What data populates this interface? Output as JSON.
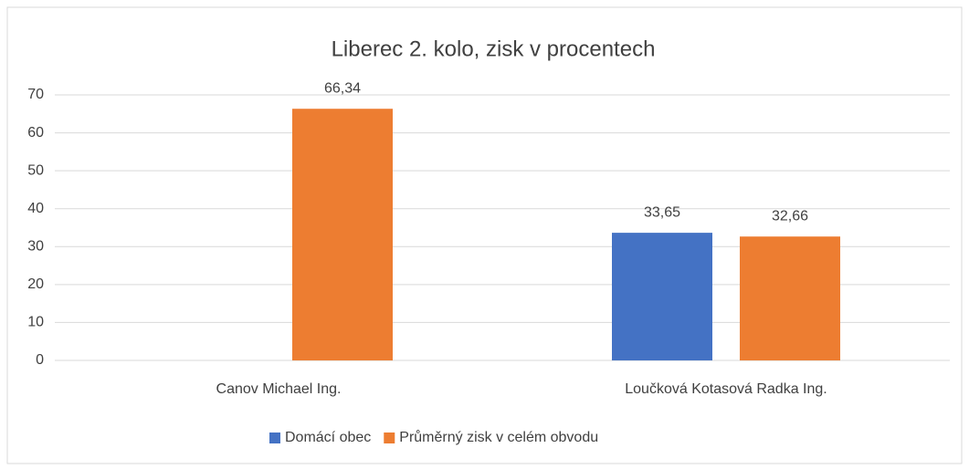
{
  "chart_data": {
    "type": "bar",
    "title": "Liberec 2. kolo, zisk v procentech",
    "categories": [
      "Canov Michael Ing.",
      "Loučková Kotasová Radka Ing."
    ],
    "series": [
      {
        "name": "Domácí obec",
        "color": "#4472c4",
        "values": [
          null,
          33.65
        ],
        "value_labels": [
          null,
          "33,65"
        ]
      },
      {
        "name": "Průměrný zisk v celém obvodu",
        "color": "#ed7d31",
        "values": [
          66.34,
          32.66
        ],
        "value_labels": [
          "66,34",
          "32,66"
        ]
      }
    ],
    "ylim": [
      0,
      70
    ],
    "yticks": [
      0,
      10,
      20,
      30,
      40,
      50,
      60,
      70
    ],
    "grid": true,
    "legend": "bottom"
  }
}
